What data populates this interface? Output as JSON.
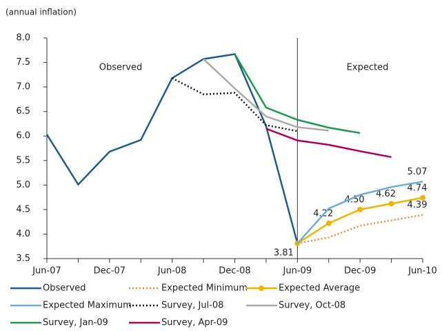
{
  "chart_data": {
    "type": "line",
    "ylabel": "(annual inflation)",
    "annotations": [
      "Observed",
      "Expected"
    ],
    "categories": [
      "Jun-07",
      null,
      "Dec-07",
      null,
      "Jun-08",
      null,
      "Dec-08",
      null,
      "Jun-09",
      null,
      "Dec-09",
      null,
      "Jun-10"
    ],
    "ylim": [
      3.5,
      8
    ],
    "yticks": [
      3.5,
      {
        "value": 4,
        "label": "4.0"
      },
      4.5,
      {
        "value": 5,
        "label": "5.0"
      },
      5.5,
      {
        "value": 6,
        "label": "6.0"
      },
      6.5,
      {
        "value": 7,
        "label": "7.0"
      },
      7.5,
      {
        "value": 8,
        "label": "8.0"
      }
    ],
    "grid": false,
    "legend": "bottom",
    "series": [
      {
        "name": "Observed",
        "color": "#1f5c8a",
        "dash": "solid",
        "values": [
          6.03,
          5.01,
          5.68,
          5.92,
          7.18,
          7.57,
          7.67,
          6.2,
          3.81,
          null,
          null,
          null,
          null
        ]
      },
      {
        "name": "Expected Minimum",
        "color": "#f08a3a",
        "dash": "dotted",
        "values": [
          null,
          null,
          null,
          null,
          null,
          null,
          null,
          null,
          3.81,
          3.93,
          4.17,
          4.28,
          4.39
        ],
        "value_labels": [
          null,
          null,
          null,
          null,
          null,
          null,
          null,
          null,
          null,
          null,
          null,
          null,
          "4.39"
        ]
      },
      {
        "name": "Expected Average",
        "color": "#f0b400",
        "dash": "solid",
        "marker": true,
        "values": [
          null,
          null,
          null,
          null,
          null,
          null,
          null,
          null,
          3.81,
          4.22,
          4.5,
          4.62,
          4.74
        ],
        "value_labels": [
          null,
          null,
          null,
          null,
          null,
          null,
          null,
          null,
          "3.81",
          "4.22",
          "4.50",
          "4.62",
          "4.74"
        ]
      },
      {
        "name": "Expected Maximum",
        "color": "#6aaed6",
        "dash": "solid",
        "values": [
          null,
          null,
          null,
          null,
          null,
          null,
          null,
          null,
          3.81,
          4.52,
          4.8,
          4.96,
          5.07
        ],
        "value_labels": [
          null,
          null,
          null,
          null,
          null,
          null,
          null,
          null,
          null,
          null,
          null,
          null,
          "5.07"
        ]
      },
      {
        "name": "Survey, Jul-08",
        "color": "#111111",
        "dash": "dotted",
        "values": [
          null,
          null,
          null,
          null,
          7.18,
          6.85,
          6.88,
          6.22,
          6.1,
          null,
          null,
          null,
          null
        ]
      },
      {
        "name": "Survey, Oct-08",
        "color": "#aaaaaa",
        "dash": "solid",
        "values": [
          null,
          null,
          null,
          null,
          null,
          7.57,
          6.97,
          6.4,
          6.18,
          6.11,
          null,
          null,
          null
        ]
      },
      {
        "name": "Survey, Jan-09",
        "color": "#1a9a50",
        "dash": "solid",
        "values": [
          null,
          null,
          null,
          null,
          null,
          null,
          7.67,
          6.58,
          6.33,
          6.17,
          6.06,
          null,
          null
        ]
      },
      {
        "name": "Survey, Apr-09",
        "color": "#b0005f",
        "dash": "solid",
        "values": [
          null,
          null,
          null,
          null,
          null,
          null,
          null,
          6.15,
          5.91,
          5.82,
          5.69,
          5.57,
          null
        ]
      }
    ]
  }
}
